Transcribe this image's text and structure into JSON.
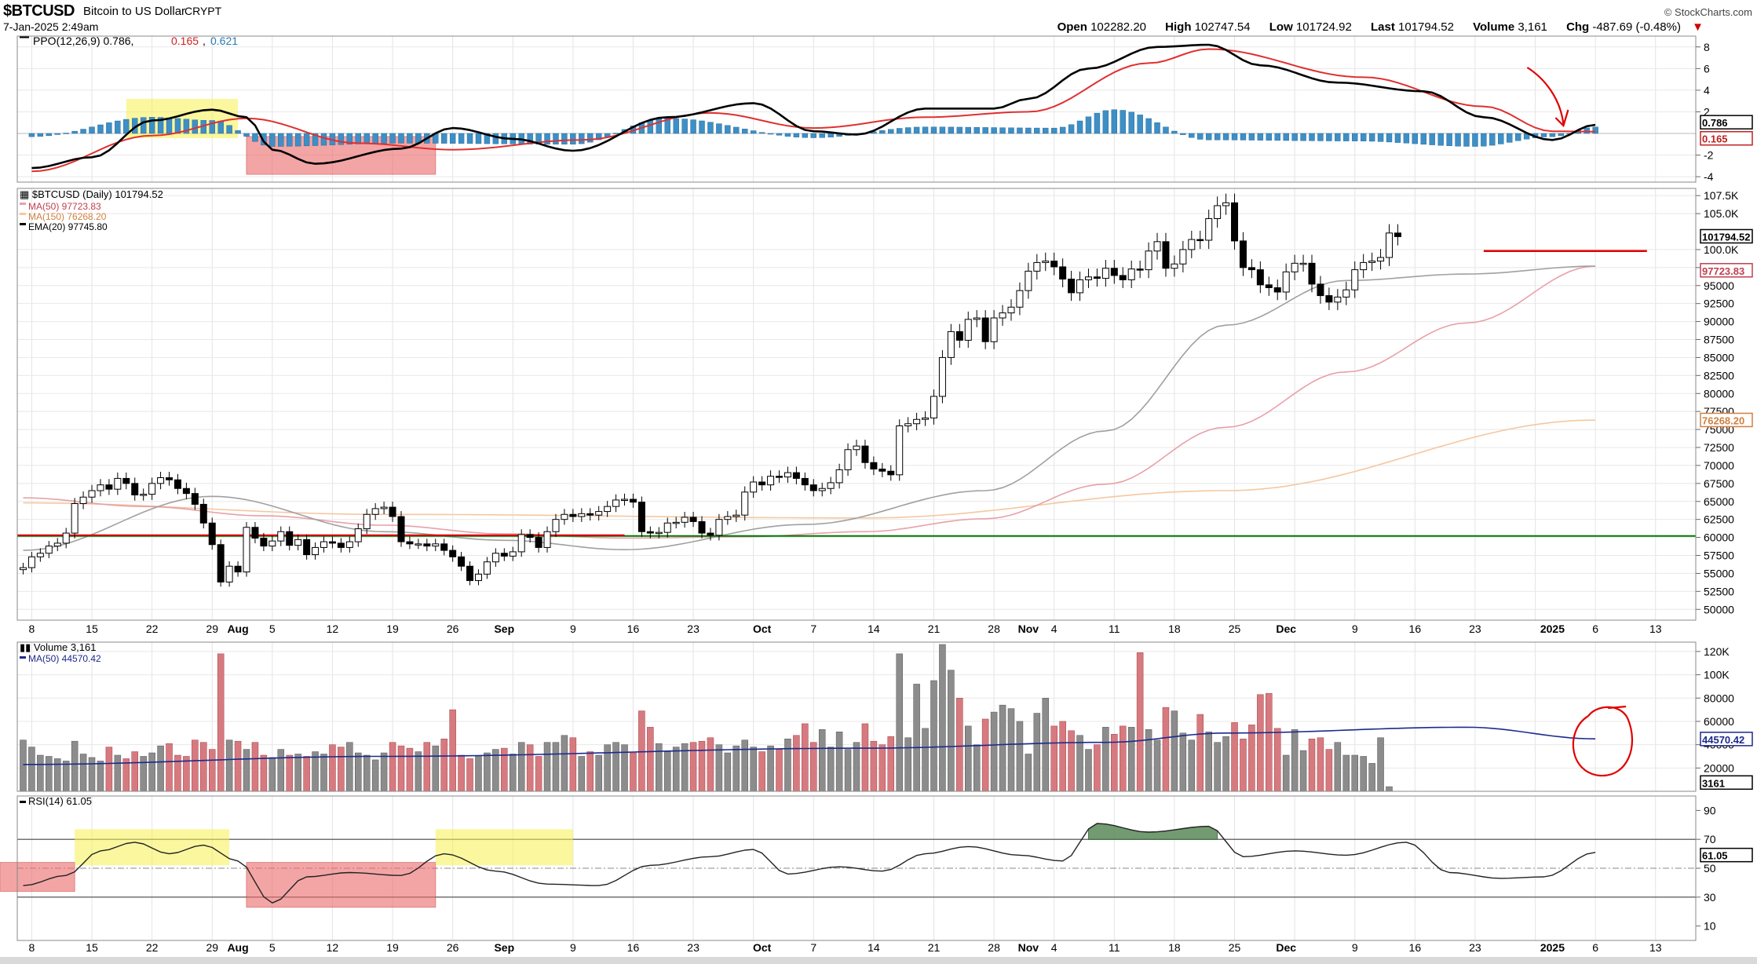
{
  "header": {
    "symbol": "$BTCUSD",
    "name": "Bitcoin to US Dollar",
    "exchange": "CRYPT",
    "date": "7-Jan-2025 2:49am",
    "copyright": "© StockCharts.com",
    "quote": {
      "open_label": "Open",
      "open": "102282.20",
      "high_label": "High",
      "high": "102747.54",
      "low_label": "Low",
      "low": "101724.92",
      "last_label": "Last",
      "last": "101794.52",
      "volume_label": "Volume",
      "volume": "3,161",
      "chg_label": "Chg",
      "chg": "-487.69 (-0.48%)",
      "chg_arrow": "▼"
    }
  },
  "colors": {
    "up_candle": "#ffffff",
    "down_candle": "#000000",
    "ma50": "#e8a0a8",
    "ma150": "#f5c7a0",
    "ema20": "#a0a0a0",
    "ppo_line": "#000000",
    "signal_line": "#e03030",
    "histogram": "#3d8fc6",
    "vol_up": "#8c8c8c",
    "vol_down": "#d77a7f",
    "vol_ma": "#1c2a8c",
    "support_line": "#007700",
    "annotation_red": "#e00000",
    "highlight_yellow": "#f5f050",
    "highlight_red": "#ec6a6a",
    "rsi_fill": "#5a8a5a"
  },
  "chart_data": [
    {
      "type": "line",
      "panel": "ppo",
      "legend": [
        "PPO(12,26,9)",
        "0.786",
        "0.165",
        "0.621"
      ],
      "ylim": [
        -4.5,
        9
      ],
      "y_ticks": [
        "8",
        "6",
        "4",
        "2",
        "-2",
        "-4"
      ],
      "right_labels": [
        "0.786",
        "0.165"
      ],
      "series": [
        {
          "name": "PPO",
          "x": [
            "2024-07-08",
            "2024-07-15",
            "2024-07-22",
            "2024-07-29",
            "2024-08-02",
            "2024-08-05",
            "2024-08-10",
            "2024-08-20",
            "2024-08-26",
            "2024-09-02",
            "2024-09-09",
            "2024-09-20",
            "2024-09-30",
            "2024-10-07",
            "2024-10-12",
            "2024-10-20",
            "2024-10-28",
            "2024-11-01",
            "2024-11-08",
            "2024-11-16",
            "2024-11-22",
            "2024-11-28",
            "2024-12-07",
            "2024-12-17",
            "2024-12-24",
            "2025-01-01",
            "2025-01-06"
          ],
          "values": [
            -3.2,
            -2.2,
            1.2,
            2.2,
            1.5,
            -1.5,
            -2.8,
            -1.4,
            0.5,
            -0.5,
            -1.6,
            1.5,
            2.8,
            0.2,
            -0.1,
            2.3,
            2.3,
            3.2,
            6.0,
            8.0,
            8.2,
            6.3,
            4.7,
            3.9,
            1.5,
            -0.6,
            0.8
          ]
        },
        {
          "name": "Signal",
          "x": [
            "2024-07-08",
            "2024-07-22",
            "2024-08-02",
            "2024-08-15",
            "2024-08-26",
            "2024-09-10",
            "2024-09-25",
            "2024-10-07",
            "2024-10-20",
            "2024-11-01",
            "2024-11-15",
            "2024-11-22",
            "2024-12-10",
            "2024-12-24",
            "2025-01-01",
            "2025-01-06"
          ],
          "values": [
            -3.5,
            -0.2,
            1.4,
            -0.9,
            -1.5,
            -0.6,
            1.9,
            0.5,
            1.5,
            2.0,
            6.5,
            7.8,
            5.2,
            2.5,
            0.2,
            0.17
          ]
        },
        {
          "name": "Histogram",
          "x": [
            "2024-07-08",
            "2024-07-22",
            "2024-07-29",
            "2024-08-05",
            "2024-08-20",
            "2024-09-09",
            "2024-09-20",
            "2024-10-07",
            "2024-10-20",
            "2024-11-04",
            "2024-11-11",
            "2024-11-22",
            "2024-12-09",
            "2024-12-23",
            "2025-01-01",
            "2025-01-06"
          ],
          "values": [
            -0.3,
            1.5,
            1.2,
            -1.2,
            -0.9,
            -1.0,
            1.4,
            -0.4,
            0.6,
            0.5,
            2.2,
            -0.6,
            -0.7,
            -1.2,
            -0.3,
            0.6
          ]
        }
      ]
    },
    {
      "type": "candlestick",
      "panel": "price",
      "legend": [
        "$BTCUSD (Daily) 101794.52",
        "MA(50) 97723.83",
        "MA(150) 76268.20",
        "EMA(20) 97745.80"
      ],
      "ylim": [
        48500,
        108500
      ],
      "y_ticks": [
        "107.5K",
        "105.0K",
        "100.0K",
        "97500",
        "95000",
        "92500",
        "90000",
        "87500",
        "85000",
        "82500",
        "80000",
        "77500",
        "75000",
        "72500",
        "70000",
        "67500",
        "65000",
        "62500",
        "60000",
        "57500",
        "55000",
        "52500",
        "50000"
      ],
      "right_labels": [
        "101794.52",
        "97723.83",
        "76268.20"
      ],
      "candles": {
        "dates_start": "2024-07-07",
        "close": [
          55800,
          57300,
          57800,
          58800,
          59200,
          60600,
          64700,
          65600,
          66500,
          67300,
          66700,
          68200,
          67500,
          65900,
          66000,
          67500,
          68300,
          68000,
          66800,
          66100,
          64600,
          62000,
          59000,
          53800,
          56000,
          55200,
          61400,
          59900,
          58800,
          59500,
          60800,
          58900,
          59700,
          57600,
          58600,
          59400,
          59200,
          58600,
          59400,
          61200,
          63200,
          64000,
          64200,
          62900,
          59400,
          59100,
          59100,
          58800,
          59100,
          58200,
          57300,
          56000,
          54000,
          54900,
          56600,
          57800,
          57400,
          58000,
          60400,
          60000,
          58600,
          60800,
          62500,
          63200,
          62900,
          63300,
          63100,
          63600,
          64300,
          65200,
          65300,
          64900,
          60800,
          60600,
          60700,
          62000,
          62100,
          62800,
          62200,
          60600,
          60300,
          62500,
          62900,
          63100,
          66300,
          67700,
          67300,
          68500,
          68400,
          69000,
          68200,
          67300,
          66500,
          66800,
          67600,
          69400,
          72200,
          72700,
          70400,
          69500,
          69200,
          68700,
          75500,
          75800,
          76400,
          76600,
          79600,
          85000,
          88600,
          87400,
          90300,
          90500,
          87200,
          90500,
          91200,
          92000,
          94300,
          97000,
          98200,
          98400,
          97600,
          95900,
          94000,
          95800,
          96200,
          96000,
          97400,
          96400,
          95800,
          97300,
          97200,
          99800,
          101100,
          97400,
          98000,
          100000,
          101400,
          101300,
          104300,
          106100,
          106500,
          101200,
          97500,
          97200,
          95100,
          94700,
          94100,
          96900,
          98100,
          98100,
          95200,
          93600,
          92700,
          93400,
          94400,
          97200,
          98200,
          98400,
          98900,
          102300,
          101800
        ]
      },
      "series": [
        {
          "name": "MA(50)",
          "x": [
            "2024-07-07",
            "2024-07-21",
            "2024-08-04",
            "2024-08-18",
            "2024-09-01",
            "2024-09-15",
            "2024-09-29",
            "2024-10-13",
            "2024-10-27",
            "2024-11-10",
            "2024-11-24",
            "2024-12-08",
            "2024-12-22",
            "2025-01-06"
          ],
          "values": [
            65500,
            64300,
            63000,
            61700,
            60500,
            59900,
            60100,
            60800,
            62600,
            67400,
            75300,
            83000,
            89800,
            97700
          ]
        },
        {
          "name": "MA(150)",
          "x": [
            "2024-07-07",
            "2024-08-18",
            "2024-10-13",
            "2024-11-24",
            "2025-01-06"
          ],
          "values": [
            64800,
            63200,
            62700,
            66500,
            76300
          ]
        },
        {
          "name": "EMA(20)",
          "x": [
            "2024-07-07",
            "2024-07-29",
            "2024-08-18",
            "2024-09-01",
            "2024-09-15",
            "2024-10-06",
            "2024-10-27",
            "2024-11-10",
            "2024-11-24",
            "2024-12-08",
            "2024-12-22",
            "2025-01-06"
          ],
          "values": [
            58200,
            65700,
            60800,
            59600,
            58300,
            61800,
            66500,
            74800,
            89500,
            95700,
            96600,
            97700
          ]
        }
      ],
      "support_lines": [
        {
          "y": 60200
        },
        {
          "y": 99800,
          "from": "2024-12-24",
          "to": "2025-01-12"
        }
      ]
    },
    {
      "type": "bar",
      "panel": "volume",
      "legend": [
        "Volume 3,161",
        "MA(50) 44570.42"
      ],
      "ylim": [
        0,
        128000
      ],
      "y_ticks": [
        "120K",
        "100K",
        "80000",
        "60000",
        "40000",
        "20000"
      ],
      "right_labels": [
        "44570.42",
        "3161"
      ],
      "values": [
        44000,
        38000,
        31000,
        30000,
        28000,
        26000,
        43000,
        32000,
        29000,
        26000,
        38000,
        31000,
        28000,
        34000,
        30000,
        33000,
        39000,
        41000,
        31000,
        30000,
        44000,
        42000,
        36000,
        118000,
        44000,
        43000,
        36000,
        42000,
        31000,
        29000,
        36000,
        31000,
        32000,
        30000,
        34000,
        32000,
        40000,
        38000,
        42000,
        33000,
        31000,
        27000,
        33000,
        42000,
        39000,
        37000,
        34000,
        42000,
        39000,
        45000,
        70000,
        31000,
        28000,
        30000,
        33000,
        36000,
        37000,
        32000,
        42000,
        40000,
        30000,
        42000,
        42000,
        48000,
        46000,
        30000,
        34000,
        31000,
        40000,
        42000,
        40000,
        33000,
        69000,
        55000,
        41000,
        34000,
        38000,
        41000,
        42000,
        43000,
        46000,
        40000,
        33000,
        39000,
        44000,
        38000,
        34000,
        39000,
        36000,
        45000,
        48000,
        58000,
        42000,
        53000,
        38000,
        51000,
        36000,
        42000,
        58000,
        43000,
        40000,
        47000,
        118000,
        46000,
        92000,
        54000,
        95000,
        126000,
        104000,
        80000,
        56000,
        40000,
        62000,
        68000,
        74000,
        71000,
        60000,
        32000,
        67000,
        80000,
        56000,
        60000,
        52000,
        48000,
        36000,
        40000,
        55000,
        49000,
        56000,
        55000,
        119000,
        53000,
        44000,
        72000,
        69000,
        50000,
        44000,
        66000,
        51000,
        42000,
        47000,
        59000,
        45000,
        57000,
        83000,
        84000,
        54000,
        31000,
        53000,
        35000,
        45000,
        46000,
        36000,
        42000,
        31000,
        31000,
        30000,
        24000,
        46000,
        4000
      ],
      "series": [
        {
          "name": "MA(50)",
          "x": [
            "2024-07-07",
            "2024-08-18",
            "2024-10-13",
            "2024-11-10",
            "2024-11-24",
            "2024-12-22",
            "2025-01-06"
          ],
          "values": [
            23000,
            30000,
            37000,
            42000,
            50000,
            55000,
            45000
          ]
        }
      ]
    },
    {
      "type": "line",
      "panel": "rsi",
      "legend": [
        "RSI(14) 61.05"
      ],
      "ylim": [
        0,
        100
      ],
      "y_ticks": [
        "90",
        "70",
        "50",
        "30",
        "10"
      ],
      "reference_lines": [
        70,
        50,
        30
      ],
      "right_labels": [
        "61.05"
      ],
      "series": [
        {
          "name": "RSI",
          "x": [
            "2024-07-07",
            "2024-07-12",
            "2024-07-16",
            "2024-07-20",
            "2024-07-24",
            "2024-07-28",
            "2024-08-01",
            "2024-08-05",
            "2024-08-09",
            "2024-08-14",
            "2024-08-20",
            "2024-08-25",
            "2024-08-31",
            "2024-09-06",
            "2024-09-12",
            "2024-09-18",
            "2024-09-25",
            "2024-09-30",
            "2024-10-04",
            "2024-10-10",
            "2024-10-15",
            "2024-10-20",
            "2024-10-25",
            "2024-10-31",
            "2024-11-05",
            "2024-11-09",
            "2024-11-15",
            "2024-11-22",
            "2024-11-26",
            "2024-12-02",
            "2024-12-08",
            "2024-12-15",
            "2024-12-20",
            "2024-12-26",
            "2024-12-31",
            "2025-01-06"
          ],
          "values": [
            38,
            45,
            62,
            68,
            60,
            66,
            55,
            26,
            44,
            47,
            45,
            60,
            48,
            39,
            38,
            52,
            58,
            63,
            46,
            51,
            48,
            60,
            65,
            59,
            55,
            81,
            75,
            79,
            58,
            62,
            59,
            68,
            47,
            43,
            44,
            61
          ]
        }
      ]
    }
  ],
  "x_axis": {
    "labels": [
      "8",
      "15",
      "22",
      "29",
      "Aug",
      "5",
      "12",
      "19",
      "26",
      "Sep",
      "9",
      "16",
      "23",
      "Oct",
      "7",
      "14",
      "21",
      "28",
      "Nov",
      "4",
      "11",
      "18",
      "25",
      "Dec",
      "9",
      "16",
      "23",
      "2025",
      "6",
      "13"
    ]
  },
  "annotations": {
    "ppo_highlights": [
      "yellow",
      "red"
    ],
    "rsi_highlights": [
      "red",
      "yellow",
      "red",
      "yellow"
    ],
    "arrow_note": "red arrow at PPO crossover",
    "volume_circle": "red circle on latest volume"
  }
}
